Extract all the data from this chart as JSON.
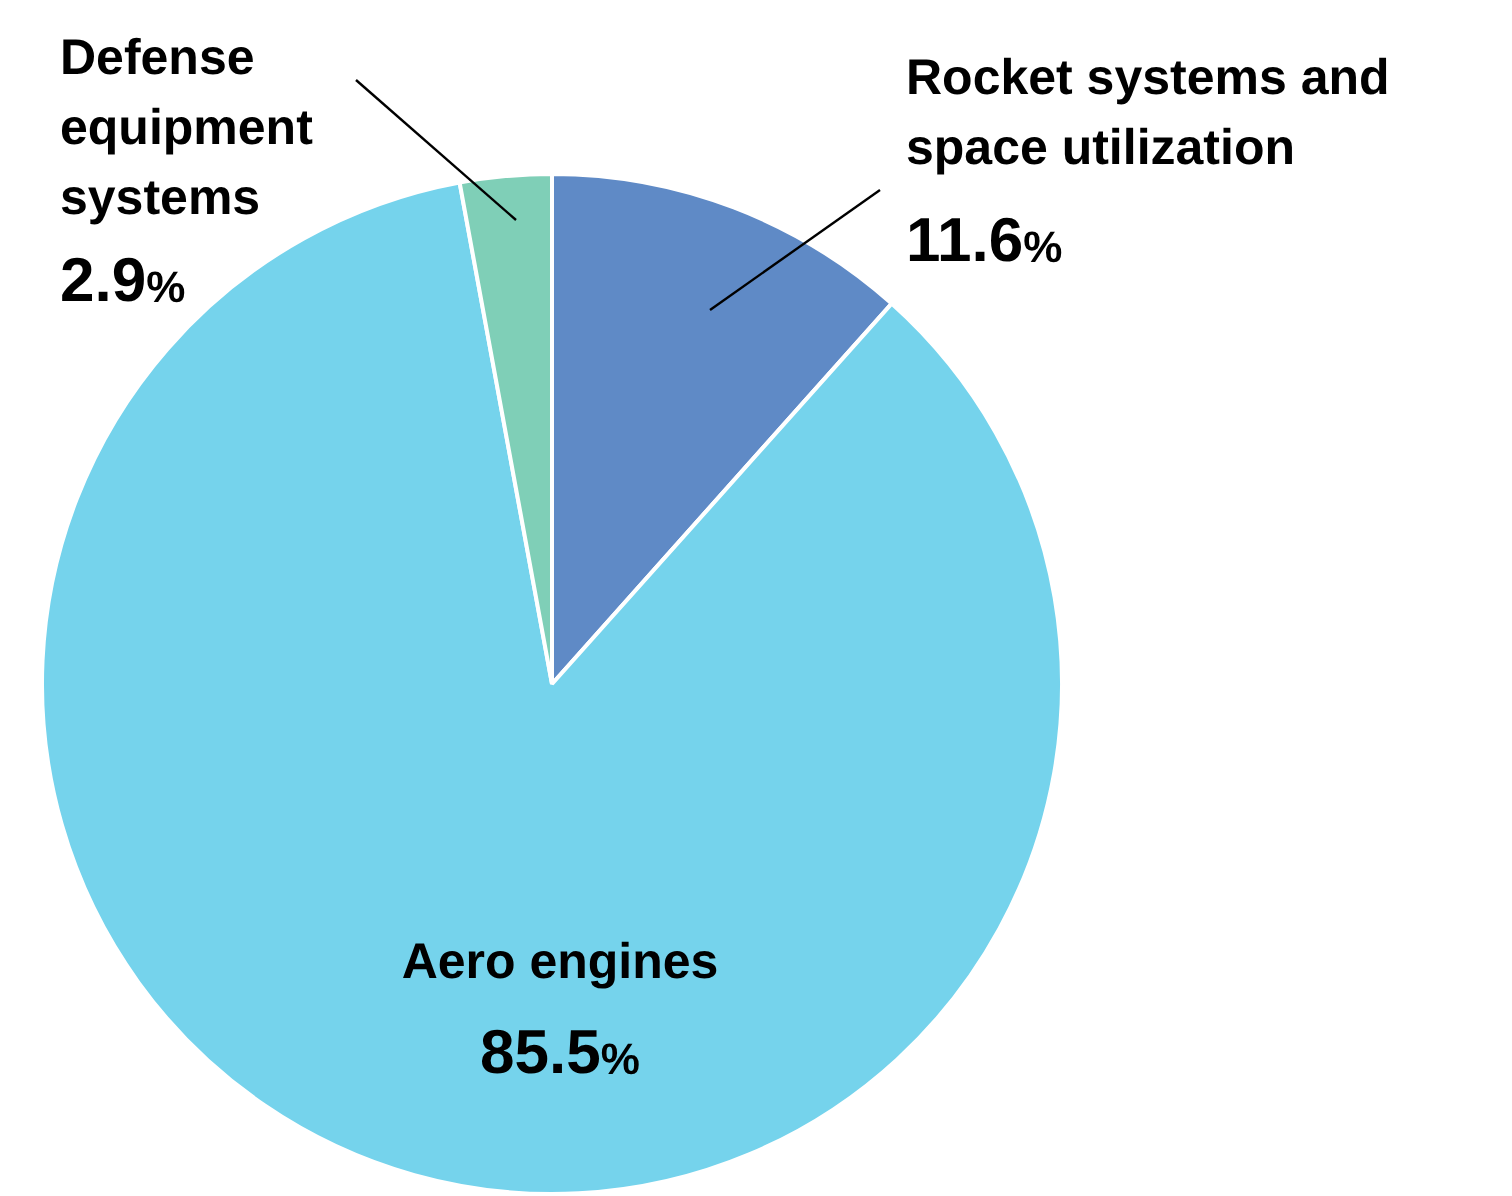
{
  "chart_data": {
    "type": "pie",
    "categories": [
      "Rocket systems and space utilization",
      "Aero engines",
      "Defense equipment systems"
    ],
    "values": [
      11.6,
      85.5,
      2.9
    ],
    "colors": [
      "#5f8ac6",
      "#75d3ec",
      "#7fcfb7"
    ],
    "value_labels": [
      "11.6%",
      "85.5%",
      "2.9%"
    ],
    "legend": false
  }
}
